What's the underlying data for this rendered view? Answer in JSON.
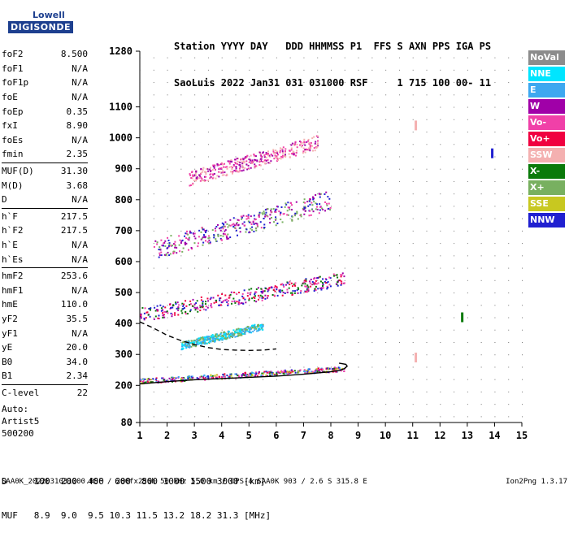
{
  "logo": {
    "brand": "Lowell",
    "product": "DIGISONDE"
  },
  "header": {
    "line1": "Station YYYY DAY   DDD HHMMSS P1  FFS S AXN PPS IGA PS",
    "line2": "SaoLuis 2022 Jan31 031 031000 RSF     1 715 100 00- 11"
  },
  "params": [
    {
      "k": "foF2",
      "v": "8.500"
    },
    {
      "k": "foF1",
      "v": "N/A"
    },
    {
      "k": "foF1p",
      "v": "N/A"
    },
    {
      "k": "foE",
      "v": "N/A"
    },
    {
      "k": "foEp",
      "v": "0.35"
    },
    {
      "k": "fxI",
      "v": "8.90"
    },
    {
      "k": "foEs",
      "v": "N/A"
    },
    {
      "k": "fmin",
      "v": "2.35"
    },
    {
      "k": "MUF(D)",
      "v": "31.30"
    },
    {
      "k": "M(D)",
      "v": "3.68"
    },
    {
      "k": "D",
      "v": "N/A"
    },
    {
      "k": "h`F",
      "v": "217.5"
    },
    {
      "k": "h`F2",
      "v": "217.5"
    },
    {
      "k": "h`E",
      "v": "N/A"
    },
    {
      "k": "h`Es",
      "v": "N/A"
    },
    {
      "k": "hmF2",
      "v": "253.6"
    },
    {
      "k": "hmF1",
      "v": "N/A"
    },
    {
      "k": "hmE",
      "v": "110.0"
    },
    {
      "k": "yF2",
      "v": "35.5"
    },
    {
      "k": "yF1",
      "v": "N/A"
    },
    {
      "k": "yE",
      "v": "20.0"
    },
    {
      "k": "B0",
      "v": "34.0"
    },
    {
      "k": "B1",
      "v": "2.34"
    },
    {
      "k": "C-level",
      "v": "22"
    }
  ],
  "autoscale": {
    "l1": "Auto:",
    "l2": "Artist5",
    "l3": "500200"
  },
  "legend": [
    {
      "name": "NoVal",
      "color": "#8c8c8c"
    },
    {
      "name": "NNE",
      "color": "#00e5ff"
    },
    {
      "name": "E",
      "color": "#3da8f0"
    },
    {
      "name": "W",
      "color": "#a000a8"
    },
    {
      "name": "Vo-",
      "color": "#f040a8"
    },
    {
      "name": "Vo+",
      "color": "#f00040"
    },
    {
      "name": "SSW",
      "color": "#f4b0b0"
    },
    {
      "name": "X-",
      "color": "#0a7a0a"
    },
    {
      "name": "X+",
      "color": "#78b060"
    },
    {
      "name": "SSE",
      "color": "#c8c820"
    },
    {
      "name": "NNW",
      "color": "#2020d0"
    }
  ],
  "dtable": {
    "row1": "D     100  200  400  600  800 1000 1500 3000 [km]",
    "row2": "MUF   8.9  9.0  9.5 10.3 11.5 13.2 18.2 31.3 [MHz]"
  },
  "footer": {
    "left": "SAA0K_2022031031000.RSF / 280fx256h 50 kHz 5.0 km / DPS-4 SAA0K 903 / 2.6 S 315.8 E",
    "right": "Ion2Png 1.3.17"
  },
  "chart_data": {
    "type": "scatter",
    "title": "",
    "xlabel": "",
    "ylabel": "",
    "xlim": [
      1,
      15
    ],
    "ylim": [
      80,
      1280
    ],
    "x_ticks": [
      1,
      2,
      3,
      4,
      5,
      6,
      7,
      8,
      9,
      10,
      11,
      12,
      13,
      14,
      15
    ],
    "y_ticks": [
      80,
      200,
      300,
      400,
      500,
      600,
      700,
      800,
      900,
      1000,
      1100,
      1280
    ],
    "traces": [
      {
        "name": "profile-upper",
        "style": "dashed",
        "x": [
          1.0,
          1.5,
          2.0,
          2.5,
          3.0,
          3.5,
          4.0,
          4.5,
          5.0,
          5.5,
          6.0
        ],
        "y": [
          405,
          385,
          362,
          345,
          332,
          322,
          316,
          314,
          313,
          314,
          318
        ]
      },
      {
        "name": "profile-lower",
        "style": "solid",
        "x": [
          1.0,
          2.0,
          3.0,
          4.0,
          5.0,
          6.0,
          7.0,
          7.5,
          8.0,
          8.3,
          8.5,
          8.6,
          8.55,
          8.3
        ],
        "y": [
          205,
          212,
          218,
          222,
          226,
          230,
          236,
          240,
          244,
          248,
          254,
          262,
          268,
          272
        ]
      }
    ],
    "echo_bands": [
      {
        "name": "F1-hop",
        "x": [
          1.0,
          8.5
        ],
        "y": [
          215,
          260
        ],
        "series": [
          "Vo-",
          "Vo+",
          "W",
          "X-",
          "SSE",
          "NNW",
          "E"
        ]
      },
      {
        "name": "F2-hop",
        "x": [
          1.0,
          8.5
        ],
        "y": [
          430,
          560
        ],
        "series": [
          "Vo-",
          "Vo+",
          "W",
          "NNW",
          "X-"
        ]
      },
      {
        "name": "F3-hop",
        "x": [
          1.5,
          8.0
        ],
        "y": [
          640,
          820
        ],
        "series": [
          "Vo-",
          "W",
          "NNW",
          "X+"
        ]
      },
      {
        "name": "F4-hop",
        "x": [
          2.8,
          7.5
        ],
        "y": [
          870,
          1000
        ],
        "series": [
          "W",
          "Vo-",
          "SSW"
        ]
      },
      {
        "name": "E-spread",
        "x": [
          2.5,
          5.5
        ],
        "y": [
          330,
          400
        ],
        "series": [
          "E",
          "NNE",
          "X+"
        ]
      }
    ],
    "isolated_marks": [
      {
        "series": "NNW",
        "x": 13.9,
        "y": 950
      },
      {
        "series": "SSW",
        "x": 11.1,
        "y": 1040
      },
      {
        "series": "SSW",
        "x": 11.1,
        "y": 290
      },
      {
        "series": "X-",
        "x": 12.8,
        "y": 420
      }
    ]
  }
}
